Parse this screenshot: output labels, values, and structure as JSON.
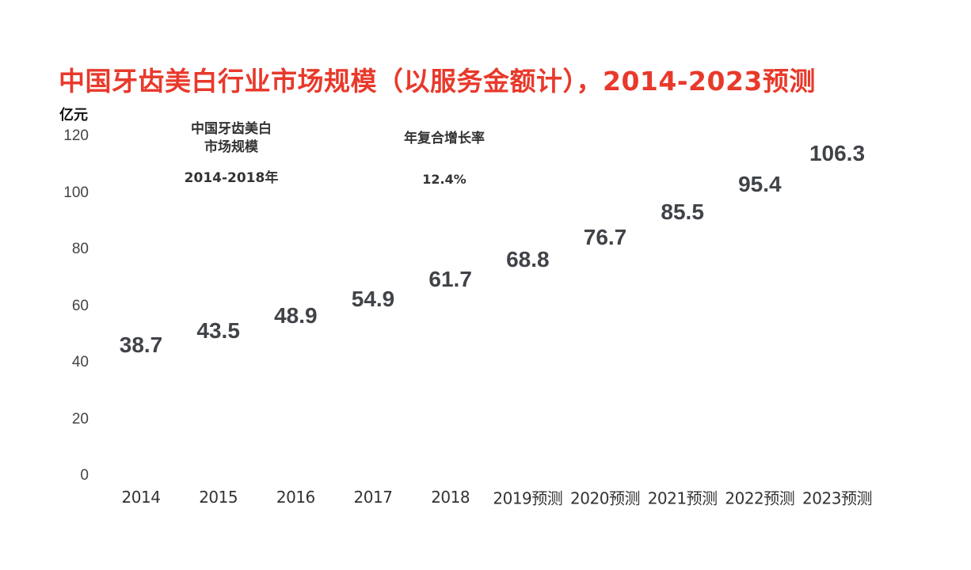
{
  "title": "中国牙齿美白行业市场规模（以服务金额计），2014-2023预测",
  "unit": "亿元",
  "annotations": {
    "market_label_line1": "中国牙齿美白",
    "market_label_line2": "市场规模",
    "period": "2014-2018年",
    "cagr_label": "年复合增长率",
    "cagr_value": "12.4%"
  },
  "colors": {
    "title": "#e8392b",
    "text": "#404348",
    "background": "#ffffff"
  },
  "chart_data": {
    "type": "bar",
    "title": "中国牙齿美白行业市场规模（以服务金额计），2014-2023预测",
    "xlabel": "",
    "ylabel": "亿元",
    "ylim": [
      0,
      120
    ],
    "yticks": [
      0,
      20,
      40,
      60,
      80,
      100,
      120
    ],
    "grid": false,
    "legend": null,
    "categories": [
      "2014",
      "2015",
      "2016",
      "2017",
      "2018",
      "2019预测",
      "2020预测",
      "2021预测",
      "2022预测",
      "2023预测"
    ],
    "values": [
      38.7,
      43.5,
      48.9,
      54.9,
      61.7,
      68.8,
      76.7,
      85.5,
      95.4,
      106.3
    ],
    "value_labels": [
      "38.7",
      "43.5",
      "48.9",
      "54.9",
      "61.7",
      "68.8",
      "76.7",
      "85.5",
      "95.4",
      "106.3"
    ],
    "annotations": [
      {
        "text": "中国牙齿美白市场规模 2014-2018年"
      },
      {
        "text": "年复合增长率 12.4%"
      }
    ]
  }
}
